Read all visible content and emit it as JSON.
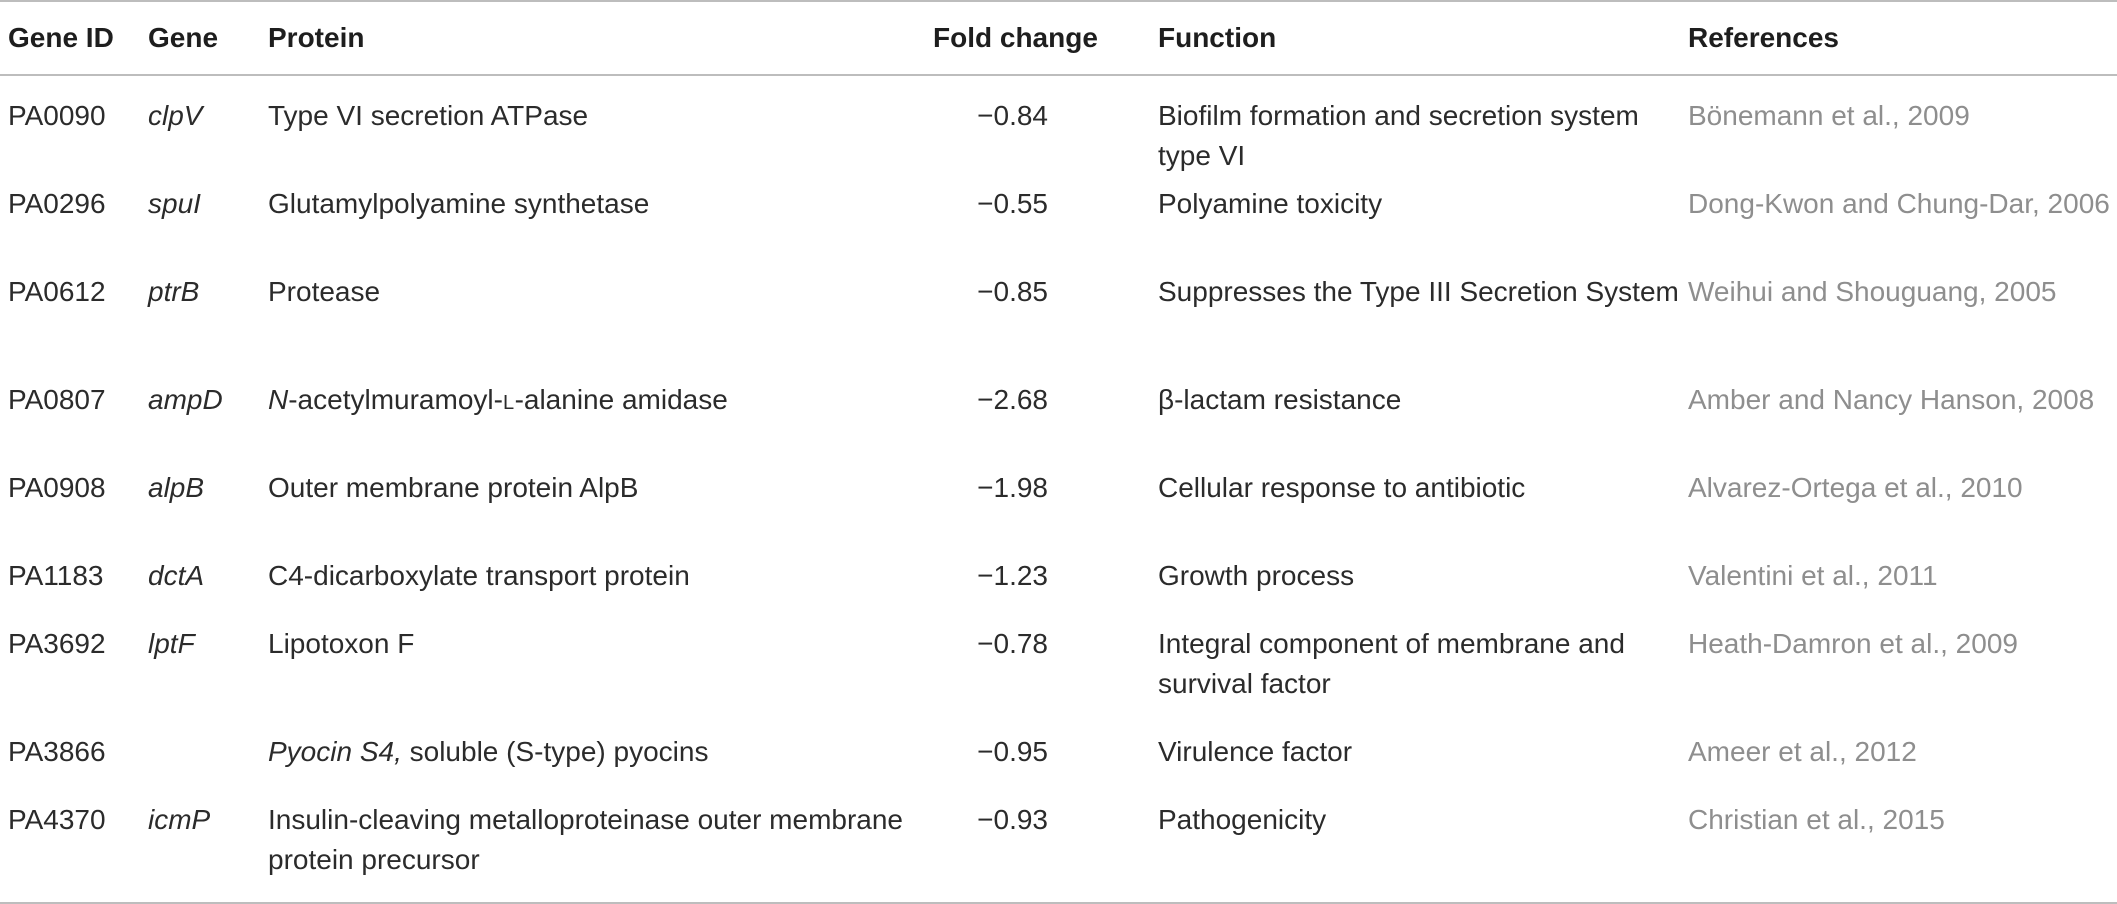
{
  "table": {
    "headers": {
      "gene_id": "Gene ID",
      "gene": "Gene",
      "protein": "Protein",
      "fold_change": "Fold change",
      "function": "Function",
      "references": "References"
    },
    "rows": [
      {
        "gene_id": "PA0090",
        "gene": "clpV",
        "protein": "Type VI secretion ATPase",
        "fold_change": "−0.84",
        "function": "Biofilm formation and secretion system type VI",
        "reference": "Bönemann et al., 2009"
      },
      {
        "gene_id": "PA0296",
        "gene": "spuI",
        "protein": "Glutamylpolyamine synthetase",
        "fold_change": "−0.55",
        "function": "Polyamine toxicity",
        "reference": "Dong-Kwon and Chung-Dar, 2006"
      },
      {
        "gene_id": "PA0612",
        "gene": "ptrB",
        "protein": "Protease",
        "fold_change": "−0.85",
        "function": "Suppresses the Type III Secretion System",
        "reference": "Weihui and Shouguang, 2005"
      },
      {
        "gene_id": "PA0807",
        "gene": "ampD",
        "protein_prefix": "N",
        "protein_mid": "-acetylmuramoyl-",
        "protein_smallcap": "L",
        "protein_suffix": "-alanine amidase",
        "fold_change": "−2.68",
        "function": "β-lactam resistance",
        "reference": "Amber and Nancy Hanson, 2008"
      },
      {
        "gene_id": "PA0908",
        "gene": "alpB",
        "protein": "Outer membrane protein AlpB",
        "fold_change": "−1.98",
        "function": "Cellular response to antibiotic",
        "reference": "Alvarez-Ortega et al., 2010"
      },
      {
        "gene_id": "PA1183",
        "gene": "dctA",
        "protein": "C4-dicarboxylate transport protein",
        "fold_change": "−1.23",
        "function": "Growth process",
        "reference": "Valentini et al., 2011"
      },
      {
        "gene_id": "PA3692",
        "gene": "lptF",
        "protein": "Lipotoxon F",
        "fold_change": "−0.78",
        "function": "Integral component of membrane and survival factor",
        "reference": "Heath-Damron et al., 2009"
      },
      {
        "gene_id": "PA3866",
        "gene": "",
        "protein_italic": "Pyocin S4,",
        "protein_rest": " soluble (S-type) pyocins",
        "fold_change": "−0.95",
        "function": "Virulence factor",
        "reference": "Ameer et al., 2012"
      },
      {
        "gene_id": "PA4370",
        "gene": "icmP",
        "protein": "Insulin-cleaving metalloproteinase outer membrane protein precursor",
        "fold_change": "−0.93",
        "function": "Pathogenicity",
        "reference": "Christian et al., 2015"
      }
    ]
  }
}
